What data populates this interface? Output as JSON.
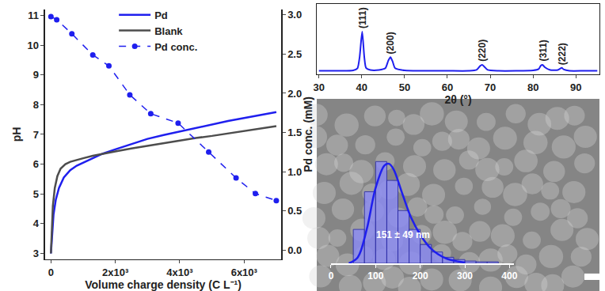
{
  "chart_data": [
    {
      "type": "line",
      "x_label": "Volume charge density (C L⁻¹)",
      "y_label": "pH",
      "y2_label": "Pd conc. (mM)",
      "xlim": [
        -180,
        7150
      ],
      "xticks": [
        0,
        {
          "value": 2000,
          "label": "2x10³"
        },
        {
          "value": 4000,
          "label": "4x10³"
        },
        {
          "value": 6000,
          "label": "6x10³"
        }
      ],
      "ylim": [
        2.8,
        11.2
      ],
      "yticks": [
        3,
        4,
        5,
        6,
        7,
        8,
        9,
        10,
        11
      ],
      "y2lim": [
        -0.12,
        3.07
      ],
      "y2ticks": [
        {
          "value": 0,
          "label": "0.0"
        },
        {
          "value": 0.5,
          "label": "0.5"
        },
        {
          "value": 1,
          "label": "1.0"
        },
        {
          "value": 1.5,
          "label": "1.5"
        },
        {
          "value": 2,
          "label": "2.0"
        },
        {
          "value": 2.5,
          "label": "2.5"
        },
        {
          "value": 3,
          "label": "3.0"
        }
      ],
      "grid": false,
      "legend": "upper center",
      "series": [
        {
          "name": "Pd",
          "color": "#1f1fee",
          "line_style": "solid",
          "x": [
            0,
            30,
            80,
            150,
            250,
            400,
            600,
            800,
            1000,
            1300,
            1600,
            2000,
            2500,
            3000,
            3500,
            4000,
            4500,
            5000,
            5500,
            6000,
            6500,
            7000
          ],
          "values": [
            3.0,
            3.6,
            4.3,
            4.8,
            5.2,
            5.55,
            5.8,
            5.95,
            6.05,
            6.2,
            6.35,
            6.5,
            6.68,
            6.85,
            6.98,
            7.1,
            7.22,
            7.33,
            7.45,
            7.55,
            7.65,
            7.75
          ]
        },
        {
          "name": "Blank",
          "color": "#4d4d4d",
          "line_style": "solid",
          "x": [
            0,
            20,
            60,
            120,
            200,
            300,
            450,
            600,
            800,
            1000,
            1300,
            1600,
            2000,
            2500,
            3000,
            3500,
            4000,
            4500,
            5000,
            5500,
            6000,
            6500,
            7000
          ],
          "values": [
            3.0,
            3.7,
            4.6,
            5.2,
            5.6,
            5.85,
            6.0,
            6.08,
            6.15,
            6.2,
            6.28,
            6.35,
            6.43,
            6.53,
            6.62,
            6.72,
            6.8,
            6.88,
            6.95,
            7.03,
            7.1,
            7.18,
            7.28
          ]
        },
        {
          "name": "Pd conc.",
          "color": "#1f1fee",
          "line_style": "dashed",
          "marker": "circle",
          "axis": "y2",
          "x": [
            0,
            180,
            650,
            1300,
            1800,
            2450,
            3100,
            3950,
            4900,
            5750,
            6350,
            7000
          ],
          "values": [
            2.98,
            2.94,
            2.76,
            2.49,
            2.35,
            1.98,
            1.74,
            1.62,
            1.25,
            0.92,
            0.72,
            0.63
          ]
        }
      ]
    },
    {
      "type": "line",
      "x_label": "2θ (°)",
      "xlim": [
        29.5,
        95.5
      ],
      "xticks": [
        30,
        40,
        50,
        60,
        70,
        80,
        90
      ],
      "ylim": [
        0,
        165
      ],
      "tick_labels": "x",
      "grid": false,
      "series": [
        {
          "color": "#1f1fee",
          "line_style": "solid",
          "x": [
            30,
            35,
            38,
            39,
            39.5,
            40.1,
            40.6,
            41,
            42,
            44,
            45.5,
            46.2,
            46.7,
            47.2,
            47.8,
            50,
            55,
            60,
            65,
            66.8,
            67.6,
            68.1,
            68.6,
            69.4,
            72,
            76,
            80,
            81.3,
            81.8,
            82.2,
            82.8,
            84,
            85.8,
            86.3,
            86.7,
            87.2,
            88.5,
            92,
            95
          ],
          "values": [
            8,
            8,
            9,
            14,
            40,
            100,
            40,
            15,
            10,
            10,
            14,
            32,
            40,
            30,
            14,
            9,
            8,
            8,
            8,
            10,
            19,
            22,
            18,
            10,
            8,
            8,
            9,
            12,
            20,
            22,
            16,
            10,
            10,
            13,
            15,
            11,
            8,
            8,
            8
          ]
        }
      ],
      "annotations": [
        {
          "text": "(111)",
          "x": 40.1
        },
        {
          "text": "(200)",
          "x": 46.7
        },
        {
          "text": "(220)",
          "x": 68.1
        },
        {
          "text": "(311)",
          "x": 82.2
        },
        {
          "text": "(222)",
          "x": 86.7
        }
      ]
    },
    {
      "type": "histogram",
      "bins": [
        50,
        75,
        100,
        125,
        150,
        175,
        200,
        225,
        250,
        275,
        300,
        325,
        350,
        375
      ],
      "values": [
        45,
        95,
        135,
        110,
        70,
        45,
        25,
        15,
        8,
        5,
        3,
        2,
        2
      ],
      "color": "#8c8cf0",
      "fit": {
        "color": "#1f1fee",
        "x": [
          40,
          60,
          80,
          100,
          120,
          130,
          140,
          160,
          180,
          200,
          220,
          240,
          260,
          280,
          300
        ],
        "values": [
          0,
          8,
          45,
          100,
          130,
          132,
          125,
          92,
          60,
          38,
          22,
          12,
          6,
          3,
          1
        ]
      },
      "xlim": [
        0,
        410
      ],
      "xticks": [
        0,
        100,
        200,
        300,
        400
      ],
      "ylim": [
        0,
        150
      ],
      "tick_labels": "x",
      "grid": false,
      "annotations": [
        {
          "text": "151 ± 49 nm"
        }
      ]
    }
  ]
}
